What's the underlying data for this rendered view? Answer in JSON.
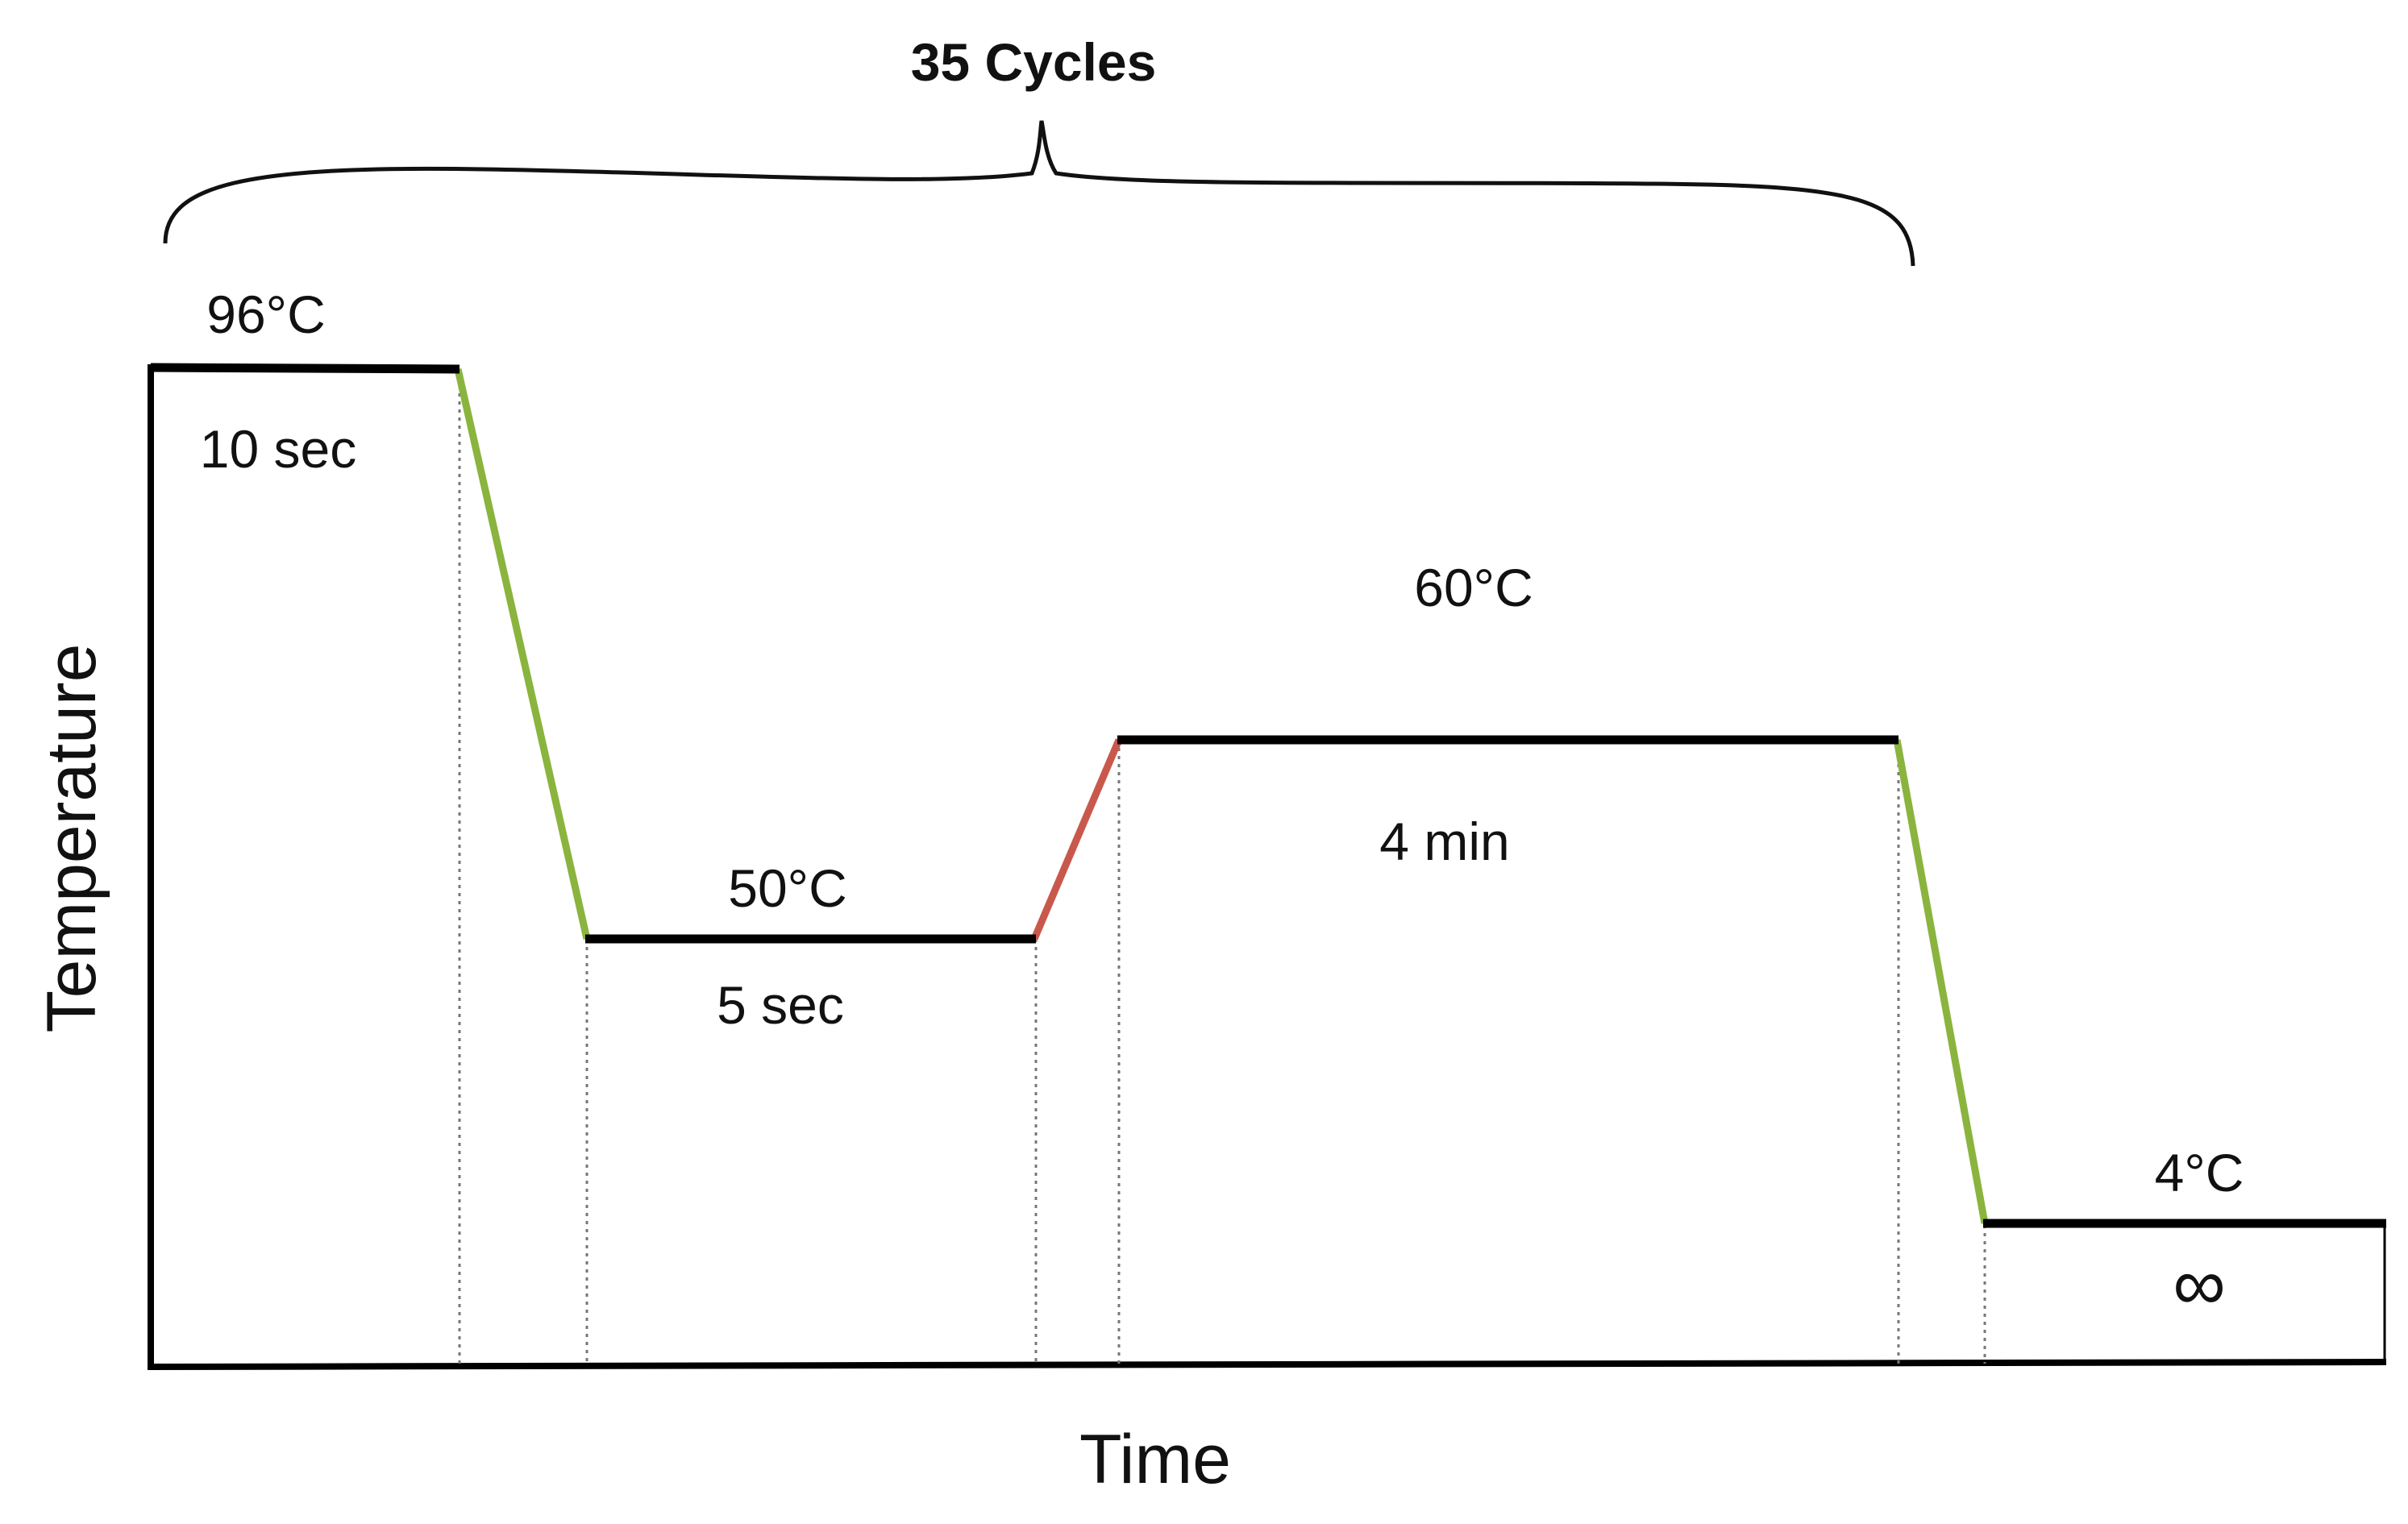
{
  "diagram": {
    "cycles_label": "35 Cycles",
    "x_axis_label": "Time",
    "y_axis_label": "Temperature",
    "steps": [
      {
        "temperature": "96°C",
        "duration": "10 sec"
      },
      {
        "temperature": "50°C",
        "duration": "5 sec"
      },
      {
        "temperature": "60°C",
        "duration": "4 min"
      },
      {
        "temperature": "4°C",
        "duration": "∞"
      }
    ],
    "colors": {
      "ramp_down": "#8ab43e",
      "ramp_up": "#c9584c",
      "hold": "#000000",
      "guide": "#777777"
    }
  }
}
